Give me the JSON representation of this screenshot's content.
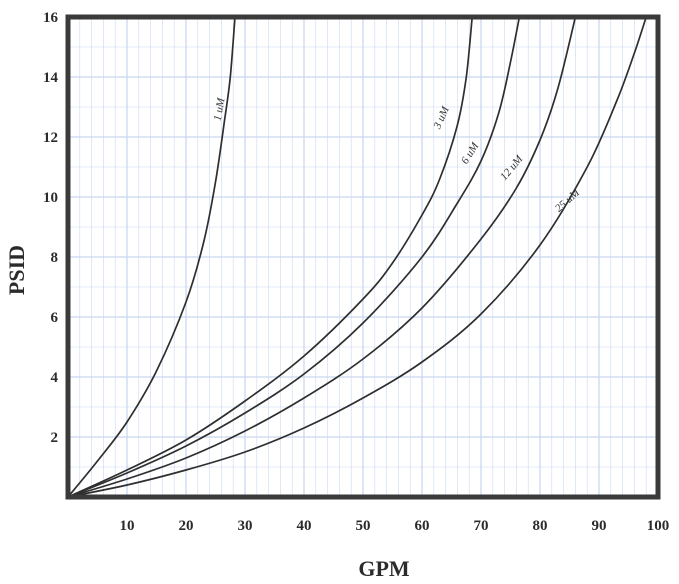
{
  "chart_data": {
    "type": "line",
    "title": "",
    "xlabel": "GPM",
    "ylabel": "PSID",
    "xlim": [
      0,
      100
    ],
    "ylim": [
      0,
      16
    ],
    "x_ticks": [
      "10",
      "20",
      "30",
      "40",
      "50",
      "60",
      "70",
      "80",
      "90",
      "100"
    ],
    "y_ticks": [
      "2",
      "4",
      "6",
      "8",
      "10",
      "12",
      "14",
      "16"
    ],
    "grid": true,
    "colors": {
      "grid": "#c9d8f0",
      "frame": "#3a3a3a",
      "curve": "#2e2e2e"
    },
    "series": [
      {
        "name": "1 uM",
        "points": [
          [
            0,
            0
          ],
          [
            5,
            1.2
          ],
          [
            10,
            2.5
          ],
          [
            15,
            4.2
          ],
          [
            20,
            6.5
          ],
          [
            23,
            8.5
          ],
          [
            25,
            10.5
          ],
          [
            26.5,
            12.5
          ],
          [
            27.5,
            14
          ],
          [
            28.3,
            16
          ]
        ]
      },
      {
        "name": "3 uM",
        "points": [
          [
            0,
            0
          ],
          [
            10,
            0.9
          ],
          [
            20,
            1.9
          ],
          [
            30,
            3.2
          ],
          [
            40,
            4.7
          ],
          [
            50,
            6.6
          ],
          [
            55,
            7.8
          ],
          [
            60,
            9.4
          ],
          [
            63,
            10.6
          ],
          [
            66,
            12.4
          ],
          [
            67.5,
            14
          ],
          [
            68.5,
            16
          ]
        ]
      },
      {
        "name": "6 uM",
        "points": [
          [
            0,
            0
          ],
          [
            10,
            0.8
          ],
          [
            20,
            1.7
          ],
          [
            30,
            2.8
          ],
          [
            40,
            4.1
          ],
          [
            50,
            5.8
          ],
          [
            60,
            8.0
          ],
          [
            66,
            9.8
          ],
          [
            70,
            11.2
          ],
          [
            73,
            12.8
          ],
          [
            75,
            14.5
          ],
          [
            76.5,
            16
          ]
        ]
      },
      {
        "name": "12 uM",
        "points": [
          [
            0,
            0
          ],
          [
            10,
            0.6
          ],
          [
            20,
            1.3
          ],
          [
            30,
            2.2
          ],
          [
            40,
            3.3
          ],
          [
            50,
            4.6
          ],
          [
            60,
            6.3
          ],
          [
            70,
            8.6
          ],
          [
            76,
            10.3
          ],
          [
            80,
            11.9
          ],
          [
            83,
            13.6
          ],
          [
            86,
            16
          ]
        ]
      },
      {
        "name": "25 uM",
        "points": [
          [
            0,
            0
          ],
          [
            10,
            0.4
          ],
          [
            20,
            0.9
          ],
          [
            30,
            1.5
          ],
          [
            40,
            2.3
          ],
          [
            50,
            3.3
          ],
          [
            60,
            4.5
          ],
          [
            70,
            6.1
          ],
          [
            80,
            8.4
          ],
          [
            88,
            11.0
          ],
          [
            93,
            13.2
          ],
          [
            96,
            14.8
          ],
          [
            98,
            16
          ]
        ]
      }
    ]
  }
}
